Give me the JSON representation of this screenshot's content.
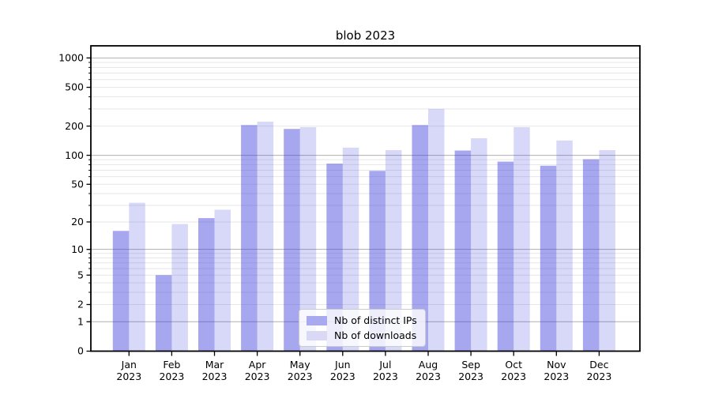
{
  "title": "blob 2023",
  "chart_data": {
    "type": "bar",
    "title": "blob 2023",
    "categories": [
      "Jan 2023",
      "Feb 2023",
      "Mar 2023",
      "Apr 2023",
      "May 2023",
      "Jun 2023",
      "Jul 2023",
      "Aug 2023",
      "Sep 2023",
      "Oct 2023",
      "Nov 2023",
      "Dec 2023"
    ],
    "x_tick_month": [
      "Jan",
      "Feb",
      "Mar",
      "Apr",
      "May",
      "Jun",
      "Jul",
      "Aug",
      "Sep",
      "Oct",
      "Nov",
      "Dec"
    ],
    "x_tick_year": "2023",
    "series": [
      {
        "name": "Nb of distinct IPs",
        "values": [
          16,
          5,
          22,
          205,
          187,
          82,
          69,
          205,
          112,
          86,
          78,
          91
        ],
        "fill": "rgba(60,60,220,0.45)",
        "swatch": "#a9a9f0"
      },
      {
        "name": "Nb of downloads",
        "values": [
          32,
          19,
          27,
          222,
          195,
          120,
          113,
          300,
          150,
          195,
          142,
          113
        ],
        "fill": "rgba(60,60,220,0.20)",
        "swatch": "#d9d9f6"
      }
    ],
    "y_axis": {
      "scale": "log1p",
      "ticks": [
        0,
        1,
        2,
        5,
        10,
        20,
        50,
        100,
        200,
        500,
        1000
      ],
      "min": 0,
      "max": 1333
    },
    "grid": {
      "major": [
        1,
        10,
        100,
        1000
      ],
      "minor": [
        2,
        3,
        4,
        5,
        6,
        7,
        8,
        9,
        20,
        30,
        40,
        50,
        60,
        70,
        80,
        90,
        200,
        300,
        400,
        500,
        600,
        700,
        800,
        900
      ],
      "major_color": "#b0b0b0",
      "minor_color": "#e7e7e7"
    },
    "legend_position": "lower center",
    "spine_color": "#000000",
    "text_color": "#000000"
  }
}
